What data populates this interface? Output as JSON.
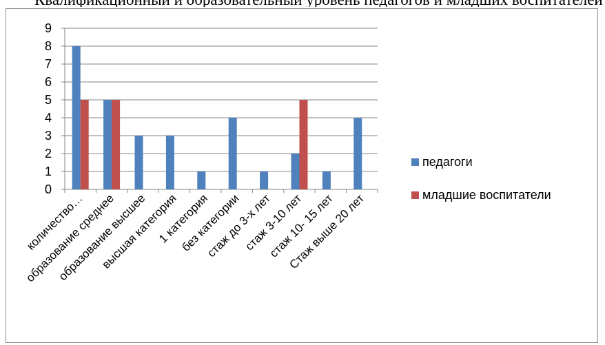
{
  "header": {
    "text": "Квалификационный и образовательный уровень педагогов и младших воспитателей ДОУ"
  },
  "colors": {
    "series_0": "#4f81bd",
    "series_1": "#c0504d",
    "gridline": "#868686",
    "axis": "#868686",
    "frame": "#8c8c8c"
  },
  "chart_data": {
    "type": "bar",
    "title": "",
    "xlabel": "",
    "ylabel": "",
    "ylim": [
      0,
      9
    ],
    "y_ticks": [
      0,
      1,
      2,
      3,
      4,
      5,
      6,
      7,
      8,
      9
    ],
    "grid": true,
    "legend_position": "right",
    "categories": [
      "количество…",
      "образование среднее",
      "образование высшее",
      "высшая категория",
      "1 категория",
      "без категории",
      "стаж до 3-х лет",
      "стаж 3-10 лет",
      "стаж 10- 15 лет",
      "Стаж выше 20 лет"
    ],
    "series": [
      {
        "name": "педагоги",
        "values": [
          8,
          5,
          3,
          3,
          1,
          4,
          1,
          2,
          1,
          4
        ]
      },
      {
        "name": "младшие воспитатели",
        "values": [
          5,
          5,
          0,
          0,
          0,
          0,
          0,
          5,
          0,
          0
        ]
      }
    ]
  }
}
